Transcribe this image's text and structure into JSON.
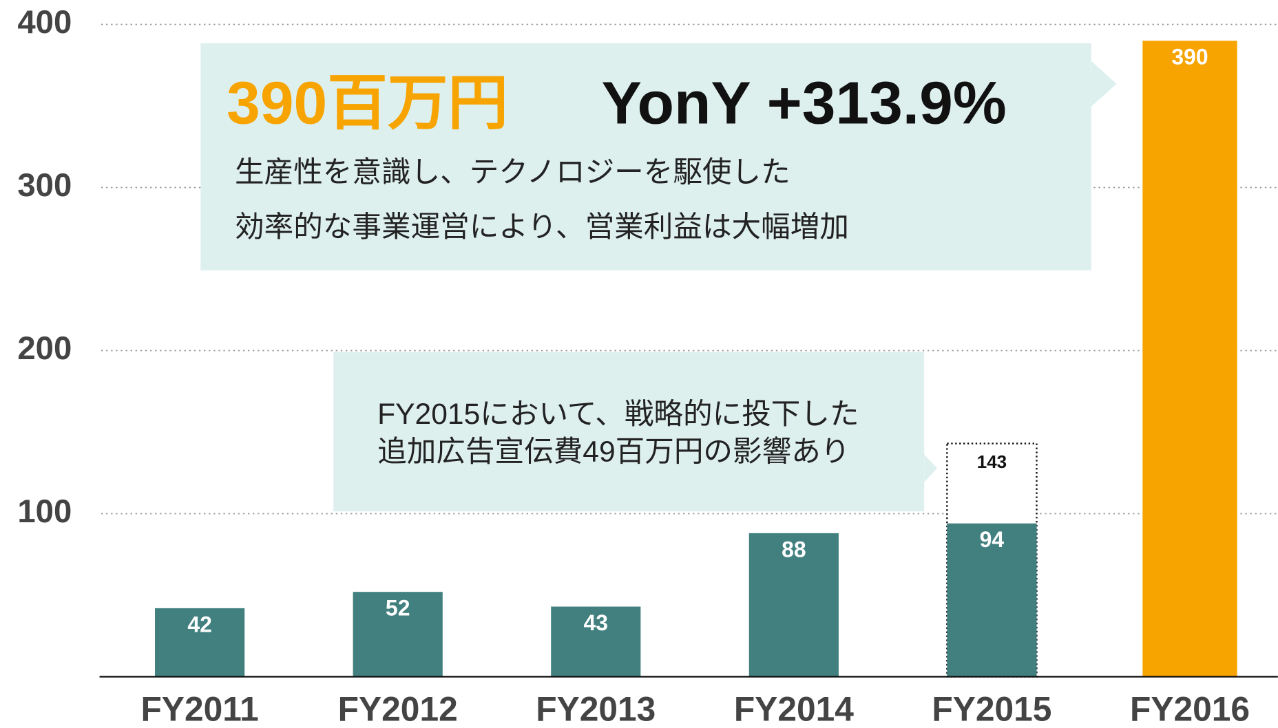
{
  "chart_data": {
    "type": "bar",
    "categories": [
      "FY2011",
      "FY2012",
      "FY2013",
      "FY2014",
      "FY2015",
      "FY2016"
    ],
    "values": [
      42,
      52,
      43,
      88,
      94,
      390
    ],
    "colors": [
      "#41807e",
      "#41807e",
      "#41807e",
      "#41807e",
      "#41807e",
      "#f7a300"
    ],
    "comparison_values": [
      null,
      null,
      null,
      null,
      143,
      null
    ],
    "ylim": [
      0,
      400
    ],
    "yticks": [
      100,
      200,
      300,
      400
    ],
    "grid": true,
    "annotations": [
      {
        "headline": "390百万円",
        "headline2": "YonY +313.9%",
        "lines": [
          "生産性を意識し、テクノロジーを駆使した",
          "効率的な事業運営により、営業利益は大幅増加"
        ]
      },
      {
        "lines": [
          "FY2015において、戦略的に投下した",
          "追加広告宣伝費49百万円の影響あり"
        ]
      }
    ]
  }
}
